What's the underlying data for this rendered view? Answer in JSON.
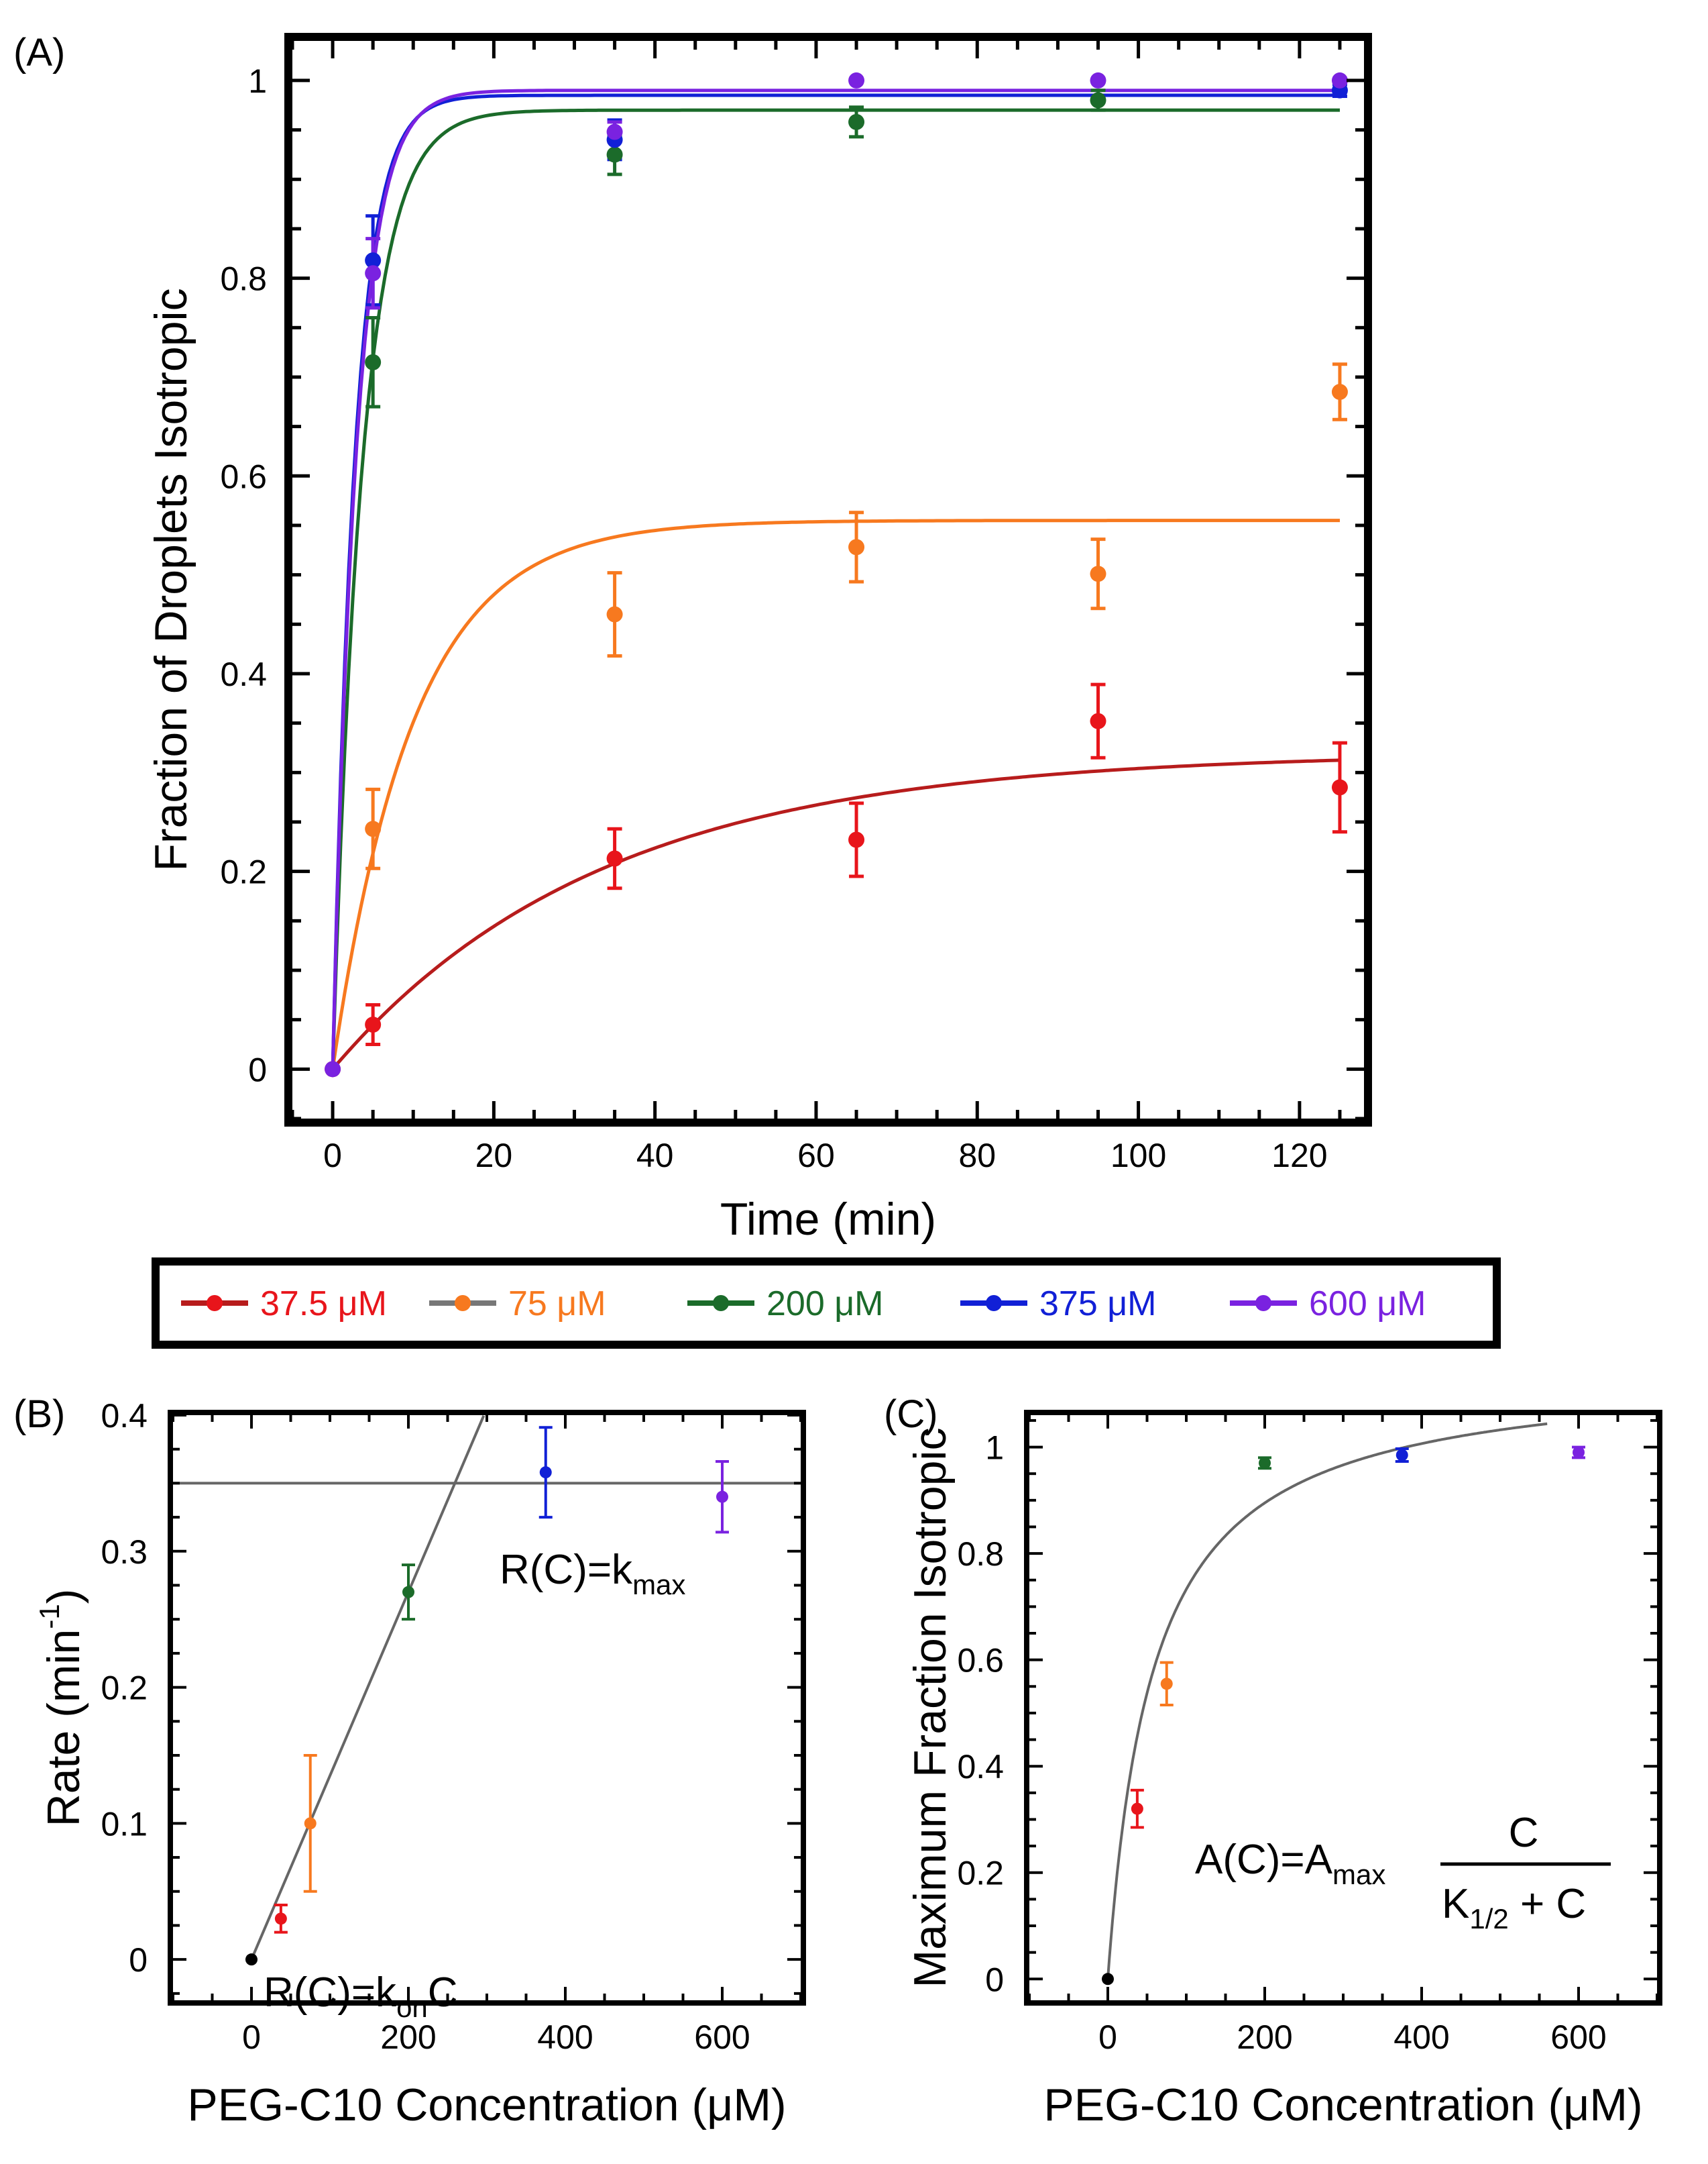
{
  "colors": {
    "c37_5": "#e8151b",
    "c37_5_line": "#b71c1c",
    "c75": "#f7791f",
    "c200": "#1b6b2a",
    "c375": "#1120d6",
    "c600": "#7a22e0",
    "fit": "#666666",
    "axis": "#000000"
  },
  "legend": {
    "items": [
      {
        "label": "37.5 μM",
        "color": "#e8151b",
        "line": "#b71c1c"
      },
      {
        "label": "75 μM",
        "color": "#f7791f",
        "line": "#777777"
      },
      {
        "label": "200 μM",
        "color": "#1b6b2a",
        "line": "#1b6b2a"
      },
      {
        "label": "375 μM",
        "color": "#1120d6",
        "line": "#1120d6"
      },
      {
        "label": "600 μM",
        "color": "#7a22e0",
        "line": "#7a22e0"
      }
    ]
  },
  "chart_data": [
    {
      "panel_label": "(A)",
      "type": "scatter",
      "xlabel": "Time (min)",
      "ylabel": "Fraction of Droplets Isotropic",
      "xlim": [
        -5,
        128
      ],
      "ylim": [
        -0.05,
        1.04
      ],
      "xticks": [
        0,
        20,
        40,
        60,
        80,
        100,
        120
      ],
      "yticks": [
        0,
        0.2,
        0.4,
        0.6,
        0.8,
        1
      ],
      "xtick_labels": [
        "0",
        "20",
        "40",
        "60",
        "80",
        "100",
        "120"
      ],
      "ytick_labels": [
        "0",
        "0.2",
        "0.4",
        "0.6",
        "0.8",
        "1"
      ],
      "series": [
        {
          "name": "37.5 μM",
          "color": "#e8151b",
          "fit_color": "#b71c1c",
          "x": [
            0,
            5,
            35,
            65,
            95,
            125
          ],
          "y": [
            0,
            0.045,
            0.213,
            0.232,
            0.352,
            0.285
          ],
          "err": [
            0,
            0.02,
            0.03,
            0.037,
            0.037,
            0.045
          ],
          "fit": {
            "A": 0.32,
            "k": 0.03
          }
        },
        {
          "name": "75 μM",
          "color": "#f7791f",
          "fit_color": "#f7791f",
          "x": [
            5,
            35,
            65,
            95,
            125
          ],
          "y": [
            0.243,
            0.46,
            0.528,
            0.501,
            0.685
          ],
          "err": [
            0.04,
            0.042,
            0.035,
            0.035,
            0.028
          ],
          "fit": {
            "A": 0.555,
            "k": 0.1
          }
        },
        {
          "name": "200 μM",
          "color": "#1b6b2a",
          "fit_color": "#1b6b2a",
          "x": [
            5,
            35,
            65,
            95
          ],
          "y": [
            0.715,
            0.925,
            0.958,
            0.98
          ],
          "err": [
            0.045,
            0.02,
            0.015,
            0.01
          ],
          "fit": {
            "A": 0.97,
            "k": 0.27
          }
        },
        {
          "name": "375 μM",
          "color": "#1120d6",
          "fit_color": "#1120d6",
          "x": [
            5,
            35,
            125
          ],
          "y": [
            0.818,
            0.94,
            0.99
          ],
          "err": [
            0.045,
            0.02,
            0.006
          ],
          "fit": {
            "A": 0.985,
            "k": 0.36
          }
        },
        {
          "name": "600 μM",
          "color": "#7a22e0",
          "fit_color": "#7a22e0",
          "x": [
            0,
            5,
            35,
            65,
            95,
            125
          ],
          "y": [
            0,
            0.805,
            0.948,
            1.0,
            1.0,
            1.0
          ],
          "err": [
            0,
            0.035,
            0.01,
            0,
            0,
            0
          ],
          "fit": {
            "A": 0.99,
            "k": 0.34
          }
        }
      ]
    },
    {
      "panel_label": "(B)",
      "type": "scatter",
      "xlabel": "PEG-C10 Concentration (μM)",
      "ylabel": "Rate (min",
      "ylabel_sup": "-1",
      "ylabel_end": ")",
      "xlim": [
        -100,
        700
      ],
      "ylim": [
        -0.03,
        0.4
      ],
      "xticks": [
        0,
        200,
        400,
        600
      ],
      "yticks": [
        0,
        0.1,
        0.2,
        0.3,
        0.4
      ],
      "xtick_labels": [
        "0",
        "200",
        "400",
        "600"
      ],
      "ytick_labels": [
        "0",
        "0.1",
        "0.2",
        "0.3",
        "0.4"
      ],
      "points": [
        {
          "x": 0,
          "y": 0,
          "err": 0,
          "color": "#000000"
        },
        {
          "x": 37.5,
          "y": 0.03,
          "err": 0.01,
          "color": "#e8151b"
        },
        {
          "x": 75,
          "y": 0.1,
          "err": 0.05,
          "color": "#f7791f"
        },
        {
          "x": 200,
          "y": 0.27,
          "err": 0.02,
          "color": "#1b6b2a"
        },
        {
          "x": 375,
          "y": 0.358,
          "err": 0.033,
          "color": "#1120d6"
        },
        {
          "x": 600,
          "y": 0.34,
          "err": 0.026,
          "color": "#7a22e0"
        }
      ],
      "fit_linear": {
        "slope": 0.00135,
        "x_end": 296
      },
      "fit_const": 0.35,
      "formula_max": {
        "text": "R(C)=k",
        "sub": "max"
      },
      "formula_on": {
        "text": "R(C)=k",
        "sub": "on",
        "suffix": "C"
      }
    },
    {
      "panel_label": "(C)",
      "type": "scatter",
      "xlabel": "PEG-C10 Concentration (μM)",
      "ylabel": "Maximum Fraction Isotropic",
      "xlim": [
        -100,
        700
      ],
      "ylim": [
        -0.04,
        1.06
      ],
      "xticks": [
        0,
        200,
        400,
        600
      ],
      "yticks": [
        0,
        0.2,
        0.4,
        0.6,
        0.8,
        1
      ],
      "xtick_labels": [
        "0",
        "200",
        "400",
        "600"
      ],
      "ytick_labels": [
        "0",
        "0.2",
        "0.4",
        "0.6",
        "0.8",
        "1"
      ],
      "points": [
        {
          "x": 0,
          "y": 0,
          "err": 0,
          "color": "#000000"
        },
        {
          "x": 37.5,
          "y": 0.32,
          "err": 0.035,
          "color": "#e8151b"
        },
        {
          "x": 75,
          "y": 0.555,
          "err": 0.04,
          "color": "#f7791f"
        },
        {
          "x": 200,
          "y": 0.97,
          "err": 0.01,
          "color": "#1b6b2a"
        },
        {
          "x": 375,
          "y": 0.985,
          "err": 0.012,
          "color": "#1120d6"
        },
        {
          "x": 600,
          "y": 0.99,
          "err": 0.01,
          "color": "#7a22e0"
        }
      ],
      "fit": {
        "Amax": 1.15,
        "K": 57,
        "x_end": 560
      },
      "formula": {
        "lhs": "A(C)=A",
        "sub": "max",
        "num": "C",
        "den": "K",
        "den_sub": "1/2",
        "den_end": " + C"
      }
    }
  ]
}
